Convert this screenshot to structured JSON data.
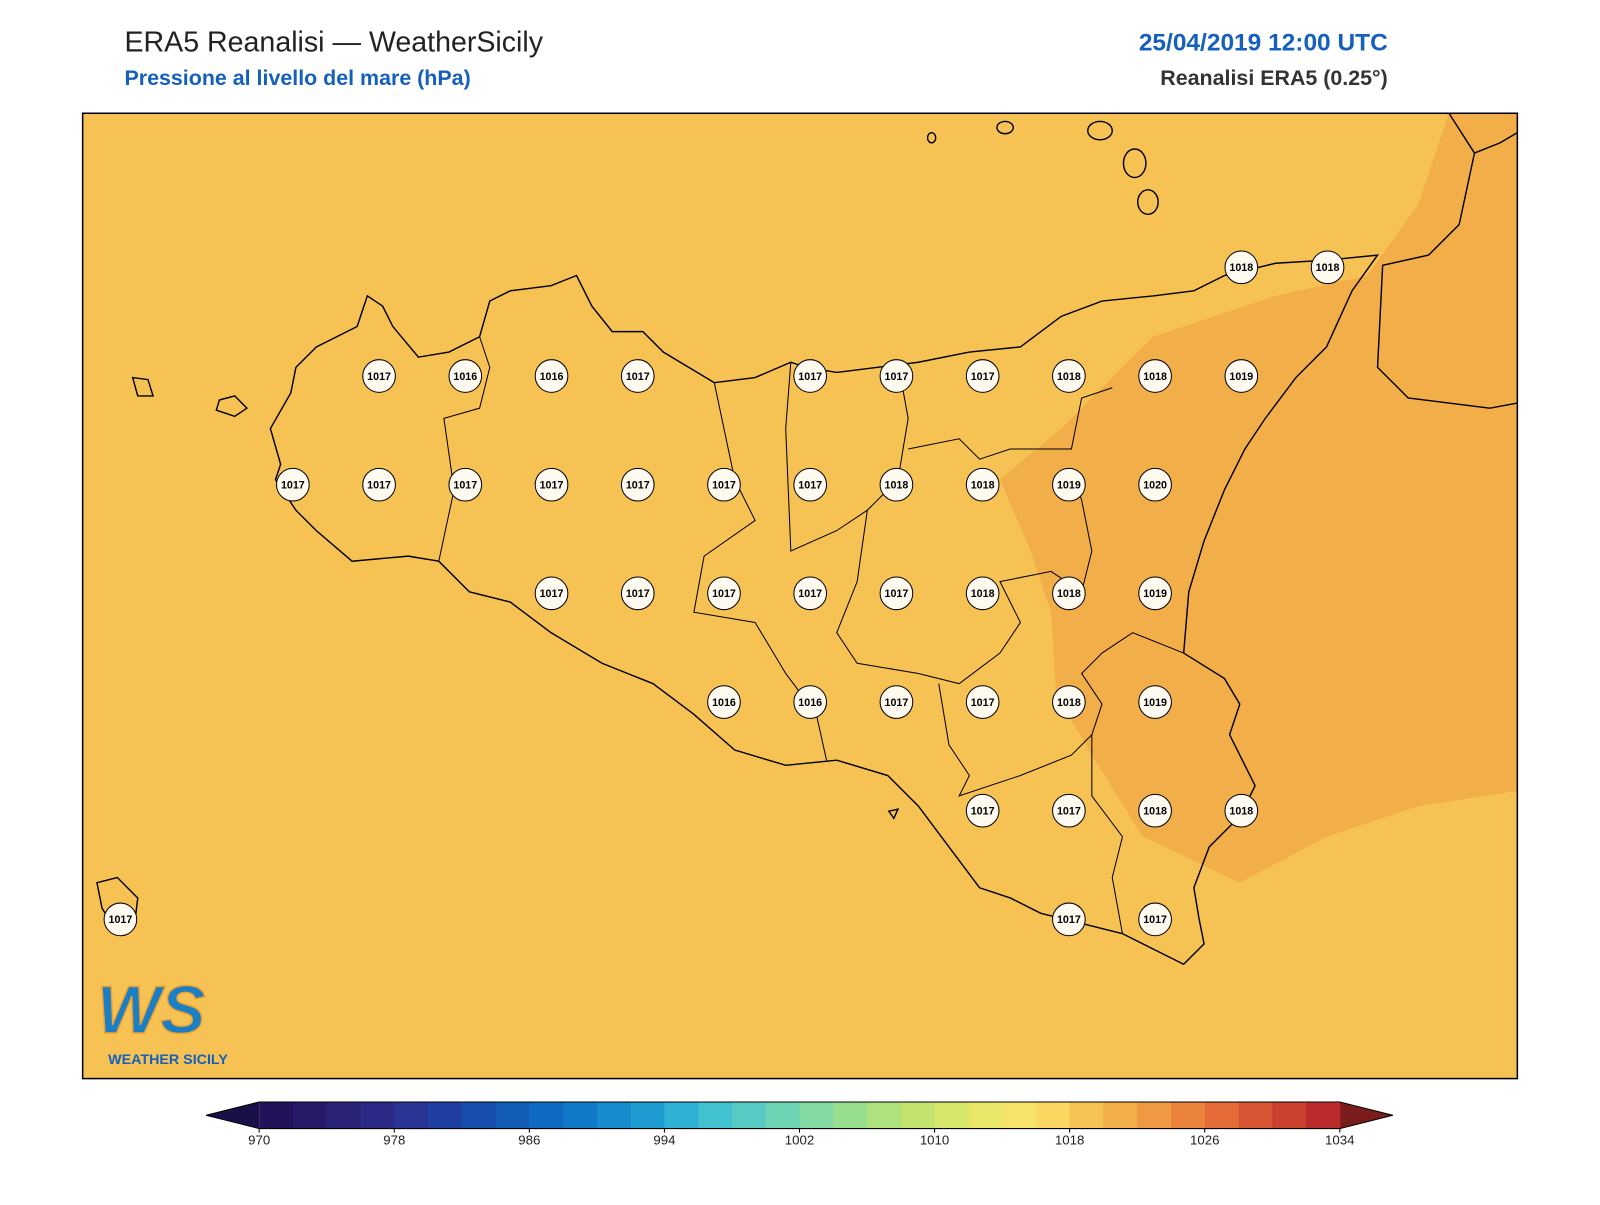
{
  "header": {
    "title": "ERA5 Reanalisi — WeatherSicily",
    "subtitle": "Pressione al livello del mare (hPa)",
    "datetime": "25/04/2019 12:00 UTC",
    "source": "Reanalisi ERA5 (0.25°)"
  },
  "map": {
    "grid_values": [
      [
        null,
        null,
        null,
        null,
        null,
        null,
        null,
        null,
        null,
        null,
        null,
        null,
        null,
        1018,
        1018
      ],
      [
        null,
        null,
        null,
        1017,
        1016,
        1016,
        1017,
        null,
        1017,
        1017,
        1017,
        1018,
        1018,
        1019,
        null
      ],
      [
        null,
        null,
        1017,
        1017,
        1017,
        1017,
        1017,
        1017,
        1017,
        1018,
        1018,
        1019,
        1020,
        null,
        null
      ],
      [
        null,
        null,
        null,
        null,
        null,
        1017,
        1017,
        1017,
        1017,
        1017,
        1018,
        1018,
        1019,
        null,
        null
      ],
      [
        null,
        null,
        null,
        null,
        null,
        null,
        null,
        1016,
        1016,
        1017,
        1017,
        1018,
        1019,
        null,
        null
      ],
      [
        null,
        null,
        null,
        null,
        null,
        null,
        null,
        null,
        null,
        null,
        1017,
        1017,
        1018,
        1018,
        null
      ],
      [
        1017,
        null,
        null,
        null,
        null,
        null,
        null,
        null,
        null,
        null,
        null,
        1017,
        1017,
        null,
        null
      ]
    ]
  },
  "colorbar": {
    "lim": [
      970,
      1034
    ],
    "ticks": [
      970,
      978,
      986,
      994,
      1002,
      1010,
      1018,
      1026,
      1034
    ],
    "colors": [
      "#22125a",
      "#261a68",
      "#2a2276",
      "#2b2a86",
      "#2a3494",
      "#1f40a2",
      "#174eae",
      "#125cb8",
      "#0f6ac2",
      "#107ac8",
      "#168bcd",
      "#1f9dd2",
      "#2eb1d4",
      "#42c1cf",
      "#57cbc3",
      "#6cd3b3",
      "#82d9a2",
      "#97de8e",
      "#ade27c",
      "#c2e46f",
      "#d6e66a",
      "#e8e76a",
      "#f6e36a",
      "#fbd762",
      "#f6c254",
      "#f2ae48",
      "#ef9a42",
      "#eb833d",
      "#e46a37",
      "#d85533",
      "#cc4030",
      "#bb2b2b"
    ],
    "extend_colors": [
      "#1b0f48",
      "#7b1c1c"
    ]
  },
  "logo": {
    "mark": "WS",
    "name": "WEATHER SICILY"
  }
}
